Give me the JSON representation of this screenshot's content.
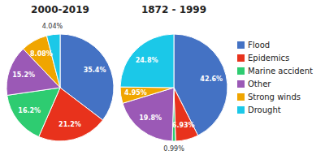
{
  "chart_data": [
    {
      "type": "pie",
      "title": "2000-2019",
      "categories": [
        "Flood",
        "Epidemics",
        "Marine accident",
        "Other",
        "Strong winds",
        "Drought"
      ],
      "values": [
        35.4,
        21.2,
        16.2,
        15.2,
        8.08,
        4.04
      ],
      "value_labels": [
        "35.4%",
        "21.2%",
        "16.2%",
        "15.2%",
        "8.08%",
        "4.04%"
      ],
      "colors": [
        "#4472C4",
        "#E8321C",
        "#2ECC71",
        "#9B59B6",
        "#F0A500",
        "#1BC8E8"
      ],
      "legend": "right"
    },
    {
      "type": "pie",
      "title": "1872 - 1999",
      "categories": [
        "Flood",
        "Epidemics",
        "Marine accident",
        "Other",
        "Strong winds",
        "Drought"
      ],
      "values": [
        42.6,
        6.93,
        0.99,
        19.8,
        4.95,
        24.8
      ],
      "value_labels": [
        "42.6%",
        "6.93%",
        "0.99%",
        "19.8%",
        "4.95%",
        "24.8%"
      ],
      "colors": [
        "#4472C4",
        "#E8321C",
        "#2ECC71",
        "#9B59B6",
        "#F0A500",
        "#1BC8E8"
      ]
    }
  ]
}
